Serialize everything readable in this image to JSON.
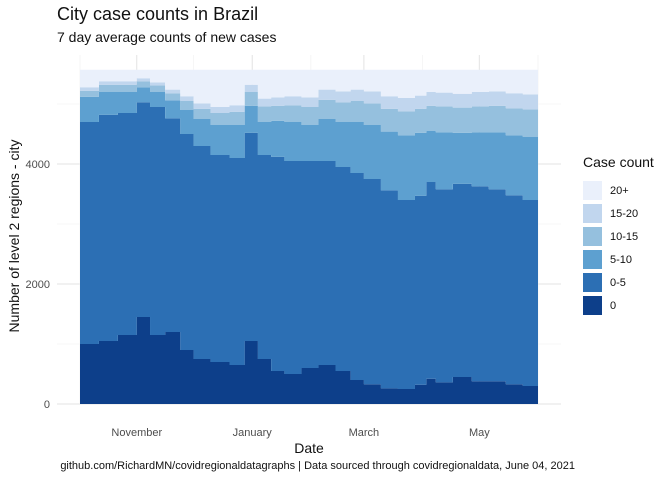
{
  "title": "City case counts in Brazil",
  "subtitle": "7 day average counts of new cases",
  "caption": "github.com/RichardMN/covidregionaldatagraphs | Data sourced through covidregionaldata, June 04, 2021",
  "colors": {
    "20+": "#eaf0fb",
    "15-20": "#c1d6ee",
    "10-15": "#95c0de",
    "5-10": "#5da0d0",
    "0-5": "#2c6fb4",
    "0": "#0d3f8a"
  },
  "chart_data": {
    "type": "area",
    "stacked": true,
    "xlabel": "Date",
    "ylabel": "Number of level 2 regions - city",
    "x_ticks": [
      "November",
      "January",
      "March",
      "May"
    ],
    "x_tick_dates": [
      "2020-11-01",
      "2021-01-01",
      "2021-03-01",
      "2021-05-01"
    ],
    "x_range": [
      "2020-10-02",
      "2021-06-01"
    ],
    "y_ticks": [
      0,
      2000,
      4000
    ],
    "ylim": [
      0,
      5570
    ],
    "grid": true,
    "legend_title": "Case count",
    "legend_position": "right",
    "legend_order": [
      "20+",
      "15-20",
      "10-15",
      "5-10",
      "0-5",
      "0"
    ],
    "x": [
      "2020-10-02",
      "2020-10-12",
      "2020-10-22",
      "2020-11-01",
      "2020-11-08",
      "2020-11-16",
      "2020-11-24",
      "2020-12-01",
      "2020-12-10",
      "2020-12-20",
      "2020-12-28",
      "2021-01-04",
      "2021-01-11",
      "2021-01-18",
      "2021-01-27",
      "2021-02-05",
      "2021-02-14",
      "2021-02-22",
      "2021-03-01",
      "2021-03-10",
      "2021-03-19",
      "2021-03-28",
      "2021-04-03",
      "2021-04-08",
      "2021-04-17",
      "2021-04-27",
      "2021-05-06",
      "2021-05-15",
      "2021-05-24",
      "2021-06-01"
    ],
    "series": [
      {
        "name": "0",
        "values": [
          1000,
          1050,
          1150,
          1450,
          1150,
          1200,
          900,
          750,
          700,
          650,
          1050,
          750,
          550,
          500,
          600,
          650,
          550,
          400,
          330,
          260,
          250,
          320,
          420,
          360,
          450,
          380,
          380,
          330,
          300,
          300
        ]
      },
      {
        "name": "0-5",
        "values": [
          3700,
          3770,
          3700,
          3580,
          3800,
          3560,
          3600,
          3550,
          3450,
          3450,
          3470,
          3400,
          3570,
          3550,
          3450,
          3400,
          3400,
          3450,
          3420,
          3300,
          3150,
          3150,
          3280,
          3220,
          3220,
          3250,
          3200,
          3150,
          3100,
          3000
        ]
      },
      {
        "name": "5-10",
        "values": [
          420,
          380,
          350,
          250,
          250,
          300,
          400,
          450,
          500,
          550,
          450,
          550,
          600,
          650,
          600,
          700,
          750,
          850,
          900,
          980,
          1080,
          1050,
          850,
          950,
          850,
          900,
          950,
          1000,
          1050,
          1100
        ]
      },
      {
        "name": "10-15",
        "values": [
          100,
          120,
          120,
          100,
          110,
          120,
          150,
          170,
          200,
          220,
          230,
          260,
          250,
          280,
          300,
          320,
          330,
          350,
          360,
          380,
          400,
          400,
          420,
          430,
          420,
          430,
          440,
          450,
          460,
          460
        ]
      },
      {
        "name": "15-20",
        "values": [
          60,
          60,
          60,
          50,
          50,
          60,
          80,
          90,
          100,
          110,
          120,
          130,
          140,
          150,
          160,
          170,
          180,
          190,
          200,
          210,
          220,
          220,
          230,
          230,
          230,
          240,
          240,
          250,
          250,
          250
        ]
      },
      {
        "name": "20+",
        "values": [
          290,
          190,
          190,
          140,
          210,
          330,
          440,
          560,
          620,
          590,
          250,
          480,
          460,
          440,
          460,
          330,
          360,
          330,
          360,
          440,
          470,
          430,
          370,
          380,
          400,
          370,
          360,
          390,
          410,
          460
        ]
      }
    ]
  }
}
